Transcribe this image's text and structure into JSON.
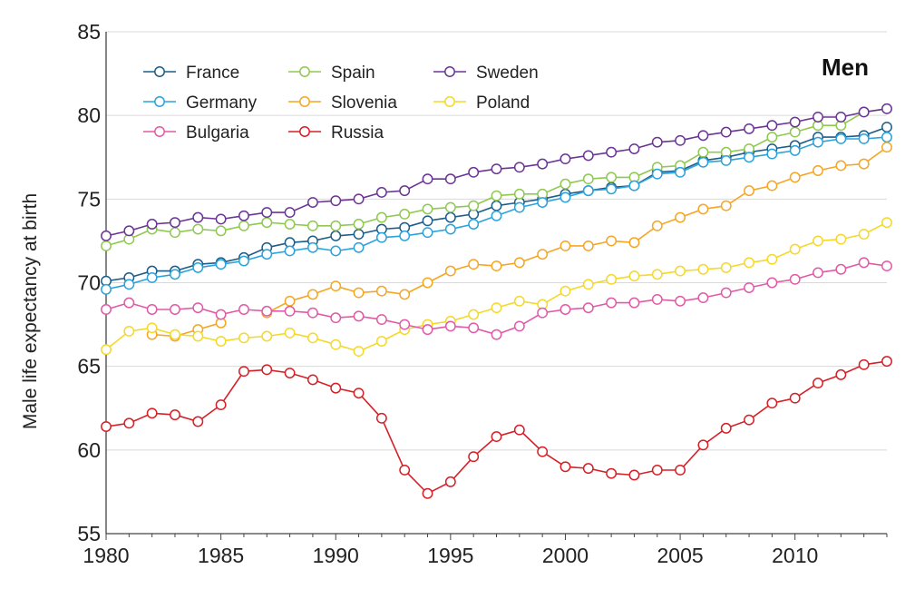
{
  "chart_data": {
    "type": "line",
    "title": "Men",
    "xlabel": "",
    "ylabel": "Male life expectancy at birth",
    "xlim": [
      1980,
      2014
    ],
    "ylim": [
      55,
      85
    ],
    "xticks": [
      1980,
      1985,
      1990,
      1995,
      2000,
      2005,
      2010
    ],
    "yticks": [
      55,
      60,
      65,
      70,
      75,
      80,
      85
    ],
    "grid": true,
    "legend_position": "top-left",
    "x": [
      1980,
      1981,
      1982,
      1983,
      1984,
      1985,
      1986,
      1987,
      1988,
      1989,
      1990,
      1991,
      1992,
      1993,
      1994,
      1995,
      1996,
      1997,
      1998,
      1999,
      2000,
      2001,
      2002,
      2003,
      2004,
      2005,
      2006,
      2007,
      2008,
      2009,
      2010,
      2011,
      2012,
      2013,
      2014
    ],
    "series": [
      {
        "name": "France",
        "color": "#1c5e8a",
        "values": [
          70.1,
          70.3,
          70.7,
          70.7,
          71.1,
          71.2,
          71.5,
          72.1,
          72.4,
          72.5,
          72.8,
          72.9,
          73.2,
          73.3,
          73.7,
          73.9,
          74.1,
          74.6,
          74.8,
          75.0,
          75.3,
          75.5,
          75.7,
          75.8,
          76.6,
          76.7,
          77.3,
          77.5,
          77.8,
          78.0,
          78.2,
          78.7,
          78.7,
          78.8,
          79.3
        ]
      },
      {
        "name": "Spain",
        "color": "#8fc94f",
        "values": [
          72.2,
          72.6,
          73.2,
          73.0,
          73.2,
          73.1,
          73.4,
          73.6,
          73.5,
          73.4,
          73.4,
          73.5,
          73.9,
          74.1,
          74.4,
          74.5,
          74.6,
          75.2,
          75.3,
          75.3,
          75.9,
          76.2,
          76.3,
          76.3,
          76.9,
          77.0,
          77.8,
          77.8,
          78.0,
          78.7,
          79.0,
          79.4,
          79.4,
          80.2,
          80.4
        ]
      },
      {
        "name": "Sweden",
        "color": "#6b3596",
        "values": [
          72.8,
          73.1,
          73.5,
          73.6,
          73.9,
          73.8,
          74.0,
          74.2,
          74.2,
          74.8,
          74.9,
          75.0,
          75.4,
          75.5,
          76.2,
          76.2,
          76.6,
          76.8,
          76.9,
          77.1,
          77.4,
          77.6,
          77.8,
          78.0,
          78.4,
          78.5,
          78.8,
          79.0,
          79.2,
          79.4,
          79.6,
          79.9,
          79.9,
          80.2,
          80.4
        ]
      },
      {
        "name": "Germany",
        "color": "#2aa3dd",
        "values": [
          69.6,
          69.9,
          70.3,
          70.5,
          70.9,
          71.1,
          71.3,
          71.7,
          71.9,
          72.1,
          71.9,
          72.1,
          72.7,
          72.8,
          73.0,
          73.2,
          73.5,
          74.0,
          74.5,
          74.8,
          75.1,
          75.5,
          75.6,
          75.8,
          76.5,
          76.6,
          77.2,
          77.3,
          77.5,
          77.7,
          77.9,
          78.4,
          78.6,
          78.6,
          78.7
        ]
      },
      {
        "name": "Slovenia",
        "color": "#f5a623",
        "values": [
          null,
          null,
          66.9,
          66.8,
          67.2,
          67.6,
          null,
          68.2,
          68.9,
          69.3,
          69.8,
          69.4,
          69.5,
          69.3,
          70.0,
          70.7,
          71.1,
          71.0,
          71.2,
          71.7,
          72.2,
          72.2,
          72.5,
          72.4,
          73.4,
          73.9,
          74.4,
          74.6,
          75.5,
          75.8,
          76.3,
          76.7,
          77.0,
          77.1,
          78.1
        ]
      },
      {
        "name": "Poland",
        "color": "#f4d92a",
        "values": [
          66.0,
          67.1,
          67.3,
          66.9,
          66.8,
          66.5,
          66.7,
          66.8,
          67.0,
          66.7,
          66.3,
          65.9,
          66.5,
          67.2,
          67.5,
          67.7,
          68.1,
          68.5,
          68.9,
          68.7,
          69.5,
          69.9,
          70.2,
          70.4,
          70.5,
          70.7,
          70.8,
          70.9,
          71.2,
          71.4,
          72.0,
          72.5,
          72.6,
          72.9,
          73.6
        ]
      },
      {
        "name": "Bulgaria",
        "color": "#e15aa6",
        "values": [
          68.4,
          68.8,
          68.4,
          68.4,
          68.5,
          68.1,
          68.4,
          68.3,
          68.3,
          68.2,
          67.9,
          68.0,
          67.8,
          67.5,
          67.2,
          67.4,
          67.3,
          66.9,
          67.4,
          68.2,
          68.4,
          68.5,
          68.8,
          68.8,
          69.0,
          68.9,
          69.1,
          69.4,
          69.7,
          70.0,
          70.2,
          70.6,
          70.8,
          71.2,
          71.0
        ]
      },
      {
        "name": "Russia",
        "color": "#d62027",
        "values": [
          61.4,
          61.6,
          62.2,
          62.1,
          61.7,
          62.7,
          64.7,
          64.8,
          64.6,
          64.2,
          63.7,
          63.4,
          61.9,
          58.8,
          57.4,
          58.1,
          59.6,
          60.8,
          61.2,
          59.9,
          59.0,
          58.9,
          58.6,
          58.5,
          58.8,
          58.8,
          60.3,
          61.3,
          61.8,
          62.8,
          63.1,
          64.0,
          64.5,
          65.1,
          65.3
        ]
      }
    ],
    "legend_columns": [
      [
        "France",
        "Germany",
        "Bulgaria"
      ],
      [
        "Spain",
        "Slovenia",
        "Russia"
      ],
      [
        "Sweden",
        "Poland"
      ]
    ]
  }
}
